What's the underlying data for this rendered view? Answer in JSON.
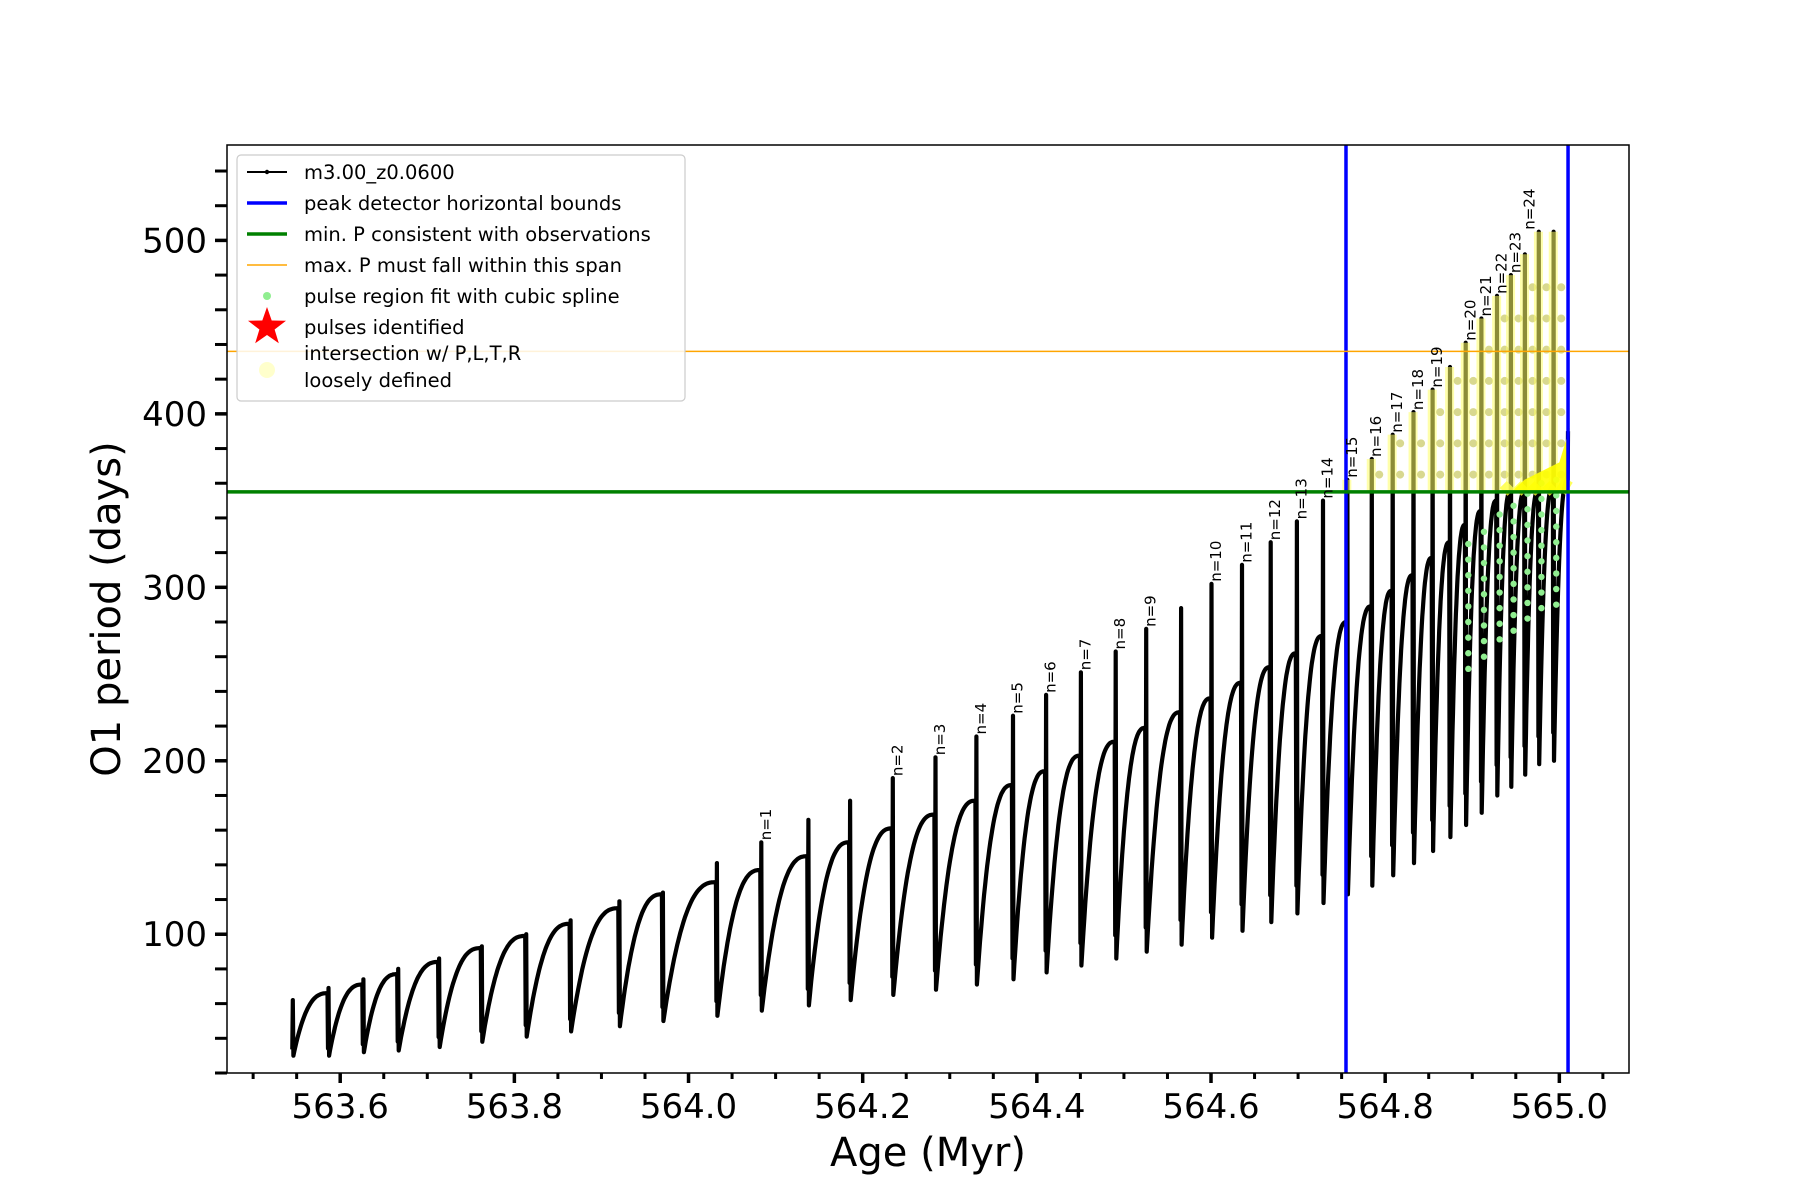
{
  "chart_data": {
    "type": "line",
    "xlabel": "Age (Myr)",
    "ylabel": "O1 period (days)",
    "xlim": [
      563.47,
      565.08
    ],
    "ylim": [
      20,
      555
    ],
    "xticks": [
      563.6,
      563.8,
      564.0,
      564.2,
      564.4,
      564.6,
      564.8,
      565.0
    ],
    "xtick_labels": [
      "563.6",
      "563.8",
      "564.0",
      "564.2",
      "564.4",
      "564.6",
      "564.8",
      "565.0"
    ],
    "yticks": [
      100,
      200,
      300,
      400,
      500
    ],
    "ytick_labels": [
      "100",
      "200",
      "300",
      "400",
      "500"
    ],
    "grid": false,
    "legend_position": "upper-left",
    "legend": [
      {
        "label": "m3.00_z0.0600",
        "kind": "line-marker",
        "color": "#000000"
      },
      {
        "label": "peak detector horizontal bounds",
        "kind": "line",
        "color": "#0000ff"
      },
      {
        "label": "min. P consistent with observations",
        "kind": "line",
        "color": "#008000"
      },
      {
        "label": "max. P must fall within this span",
        "kind": "thin-line",
        "color": "#ffa500"
      },
      {
        "label": "pulse region fit with cubic spline",
        "kind": "dot",
        "color": "#90ee90"
      },
      {
        "label": "pulses identified",
        "kind": "star",
        "color": "#ff0000"
      },
      {
        "label": "intersection w/ P,L,T,R",
        "label2": "loosely defined",
        "kind": "dot-large",
        "color": "#ffffcc"
      }
    ],
    "reference_lines": {
      "vertical_bounds": [
        564.755,
        565.01
      ],
      "min_period": 355,
      "max_period": 436
    },
    "series": [
      {
        "name": "m3.00_z0.0600",
        "color": "#000000",
        "cycles": [
          {
            "start": 563.545,
            "trough": 30,
            "spike": 62,
            "end_peak": 66
          },
          {
            "start": 563.586,
            "trough": 30,
            "spike": 69,
            "end_peak": 71
          },
          {
            "start": 563.626,
            "trough": 32,
            "spike": 74,
            "end_peak": 77
          },
          {
            "start": 563.666,
            "trough": 33,
            "spike": 80,
            "end_peak": 84
          },
          {
            "start": 563.713,
            "trough": 35,
            "spike": 86,
            "end_peak": 92
          },
          {
            "start": 563.762,
            "trough": 38,
            "spike": 93,
            "end_peak": 99
          },
          {
            "start": 563.813,
            "trough": 41,
            "spike": 100,
            "end_peak": 106
          },
          {
            "start": 563.864,
            "trough": 44,
            "spike": 108,
            "end_peak": 115
          },
          {
            "start": 563.92,
            "trough": 47,
            "spike": 119,
            "end_peak": 123
          },
          {
            "start": 563.97,
            "trough": 50,
            "spike": 124,
            "end_peak": 130
          },
          {
            "start": 564.032,
            "trough": 53,
            "spike": 141,
            "end_peak": 137
          },
          {
            "start": 564.083,
            "trough": 56,
            "spike": 153,
            "end_peak": 145
          },
          {
            "start": 564.137,
            "trough": 59,
            "spike": 166,
            "end_peak": 153
          },
          {
            "start": 564.185,
            "trough": 62,
            "spike": 177,
            "end_peak": 161
          },
          {
            "start": 564.234,
            "trough": 65,
            "spike": 190,
            "end_peak": 169
          },
          {
            "start": 564.283,
            "trough": 68,
            "spike": 202,
            "end_peak": 177
          },
          {
            "start": 564.33,
            "trough": 71,
            "spike": 214,
            "end_peak": 186
          },
          {
            "start": 564.372,
            "trough": 74,
            "spike": 226,
            "end_peak": 194
          },
          {
            "start": 564.41,
            "trough": 78,
            "spike": 238,
            "end_peak": 203
          },
          {
            "start": 564.45,
            "trough": 82,
            "spike": 251,
            "end_peak": 211
          },
          {
            "start": 564.49,
            "trough": 86,
            "spike": 263,
            "end_peak": 219
          },
          {
            "start": 564.525,
            "trough": 90,
            "spike": 276,
            "end_peak": 228
          },
          {
            "start": 564.565,
            "trough": 94,
            "spike": 288,
            "end_peak": 236
          },
          {
            "start": 564.6,
            "trough": 98,
            "spike": 302,
            "end_peak": 245
          },
          {
            "start": 564.635,
            "trough": 102,
            "spike": 313,
            "end_peak": 254
          },
          {
            "start": 564.668,
            "trough": 107,
            "spike": 326,
            "end_peak": 262
          },
          {
            "start": 564.698,
            "trough": 112,
            "spike": 338,
            "end_peak": 272
          },
          {
            "start": 564.728,
            "trough": 118,
            "spike": 350,
            "end_peak": 280
          },
          {
            "start": 564.756,
            "trough": 123,
            "spike": 362,
            "end_peak": 289
          },
          {
            "start": 564.784,
            "trough": 128,
            "spike": 374,
            "end_peak": 298
          },
          {
            "start": 564.808,
            "trough": 134,
            "spike": 388,
            "end_peak": 307
          },
          {
            "start": 564.832,
            "trough": 141,
            "spike": 401,
            "end_peak": 317
          },
          {
            "start": 564.854,
            "trough": 148,
            "spike": 414,
            "end_peak": 326
          },
          {
            "start": 564.874,
            "trough": 156,
            "spike": 427,
            "end_peak": 336
          },
          {
            "start": 564.892,
            "trough": 163,
            "spike": 441,
            "end_peak": 344
          },
          {
            "start": 564.91,
            "trough": 170,
            "spike": 455,
            "end_peak": 350
          },
          {
            "start": 564.928,
            "trough": 180,
            "spike": 468,
            "end_peak": 355
          },
          {
            "start": 564.944,
            "trough": 185,
            "spike": 480,
            "end_peak": 355
          },
          {
            "start": 564.96,
            "trough": 192,
            "spike": 492,
            "end_peak": 356
          },
          {
            "start": 564.976,
            "trough": 198,
            "spike": 505,
            "end_peak": 358
          },
          {
            "start": 564.993,
            "trough": 200,
            "spike": 505,
            "end_peak": 362
          }
        ],
        "final_point": {
          "x": 565.01,
          "y": 390
        }
      }
    ],
    "pulse_labels": [
      {
        "text": "n=1",
        "x": 564.083,
        "y": 153
      },
      {
        "text": "n=2",
        "x": 564.234,
        "y": 190
      },
      {
        "text": "n=3",
        "x": 564.283,
        "y": 202
      },
      {
        "text": "n=4",
        "x": 564.33,
        "y": 214
      },
      {
        "text": "n=5",
        "x": 564.372,
        "y": 226
      },
      {
        "text": "n=6",
        "x": 564.41,
        "y": 238
      },
      {
        "text": "n=7",
        "x": 564.45,
        "y": 251
      },
      {
        "text": "n=8",
        "x": 564.49,
        "y": 263
      },
      {
        "text": "n=9",
        "x": 564.525,
        "y": 276
      },
      {
        "text": "n=10",
        "x": 564.6,
        "y": 302
      },
      {
        "text": "n=11",
        "x": 564.635,
        "y": 313
      },
      {
        "text": "n=12",
        "x": 564.668,
        "y": 326
      },
      {
        "text": "n=13",
        "x": 564.698,
        "y": 338
      },
      {
        "text": "n=14",
        "x": 564.728,
        "y": 350
      },
      {
        "text": "n=15",
        "x": 564.756,
        "y": 362
      },
      {
        "text": "n=16",
        "x": 564.784,
        "y": 374
      },
      {
        "text": "n=17",
        "x": 564.808,
        "y": 388
      },
      {
        "text": "n=18",
        "x": 564.832,
        "y": 401
      },
      {
        "text": "n=19",
        "x": 564.854,
        "y": 414
      },
      {
        "text": "n=20",
        "x": 564.892,
        "y": 441
      },
      {
        "text": "n=21",
        "x": 564.91,
        "y": 455
      },
      {
        "text": "n=22",
        "x": 564.928,
        "y": 468
      },
      {
        "text": "n=23",
        "x": 564.944,
        "y": 480
      },
      {
        "text": "n=24",
        "x": 564.96,
        "y": 505
      }
    ]
  }
}
